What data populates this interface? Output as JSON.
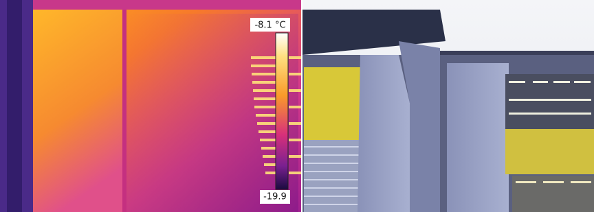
{
  "thermal": {
    "max_label": "-8.1 °C",
    "min_label": "-19.9"
  }
}
